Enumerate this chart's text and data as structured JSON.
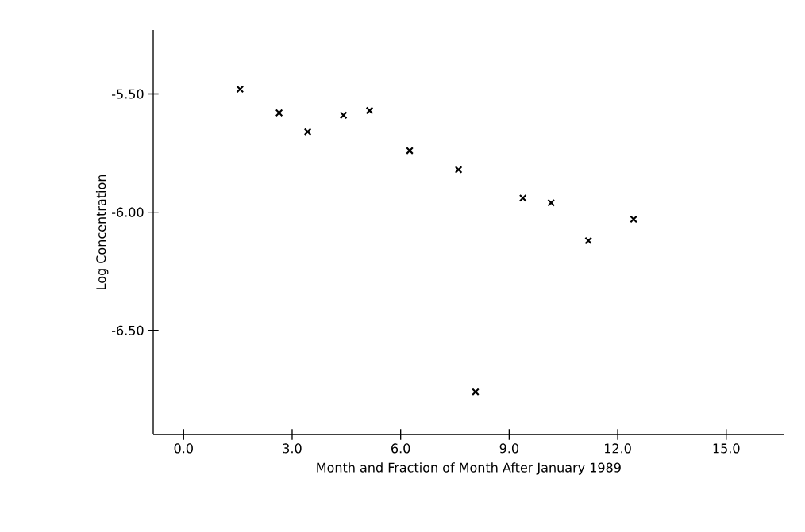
{
  "chart_data": {
    "type": "scatter",
    "xlabel": "Month and Fraction of Month After January 1989",
    "ylabel": "Log Concentration",
    "x": [
      1.56,
      2.64,
      3.43,
      4.42,
      5.14,
      6.25,
      7.6,
      8.07,
      9.38,
      10.16,
      11.19,
      12.44
    ],
    "values": [
      -5.48,
      -5.58,
      -5.66,
      -5.59,
      -5.57,
      -5.74,
      -5.82,
      -6.76,
      -5.94,
      -5.96,
      -6.12,
      -6.03
    ],
    "color": "#000000",
    "marker": "cross",
    "xlim": [
      -0.84,
      16.6
    ],
    "ylim": [
      -6.94,
      -5.23
    ],
    "xticks": [
      {
        "value": 0,
        "label": "0.0"
      },
      {
        "value": 3,
        "label": "3.0"
      },
      {
        "value": 6,
        "label": "6.0"
      },
      {
        "value": 9,
        "label": "9.0"
      },
      {
        "value": 12,
        "label": "12.0"
      },
      {
        "value": 15,
        "label": "15.0"
      }
    ],
    "yticks": [
      {
        "value": -5.5,
        "label": "-5.50"
      },
      {
        "value": -6.0,
        "label": "-6.00"
      },
      {
        "value": -6.5,
        "label": "-6.50"
      }
    ],
    "grid": false
  }
}
